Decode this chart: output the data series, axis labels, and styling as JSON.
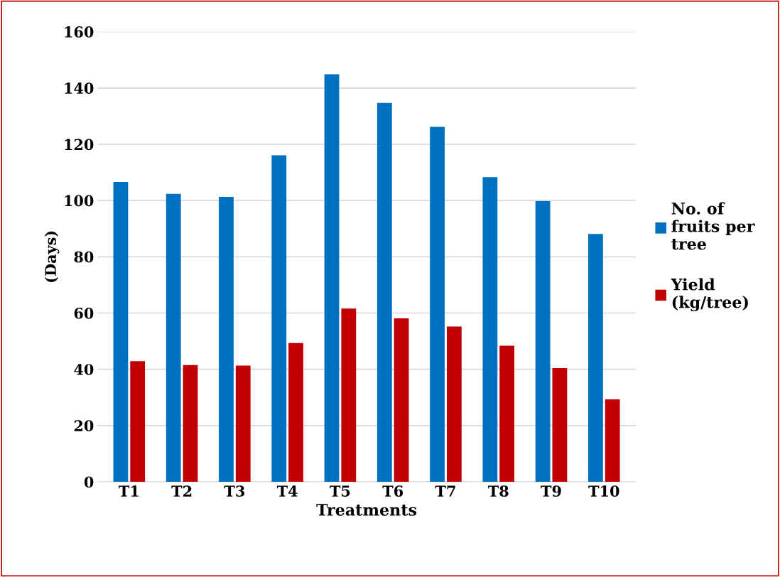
{
  "chart_data": {
    "type": "bar",
    "xlabel": "Treatments",
    "ylabel": "(Days)",
    "categories": [
      "T1",
      "T2",
      "T3",
      "T4",
      "T5",
      "T6",
      "T7",
      "T8",
      "T9",
      "T10"
    ],
    "series": [
      {
        "name": "No. of fruits per tree",
        "color": "#0070c0",
        "values": [
          106.6,
          102.4,
          101.3,
          116.1,
          144.9,
          134.7,
          126.2,
          108.3,
          99.8,
          88.1
        ]
      },
      {
        "name": "Yield (kg/tree)",
        "color": "#c00000",
        "values": [
          42.9,
          41.5,
          41.3,
          49.3,
          61.6,
          58.1,
          55.2,
          48.4,
          40.4,
          29.3
        ]
      }
    ],
    "ylim": [
      0,
      160
    ],
    "yticks": [
      0,
      20,
      40,
      60,
      80,
      100,
      120,
      140,
      160
    ],
    "grid": "y",
    "legend": "right"
  }
}
